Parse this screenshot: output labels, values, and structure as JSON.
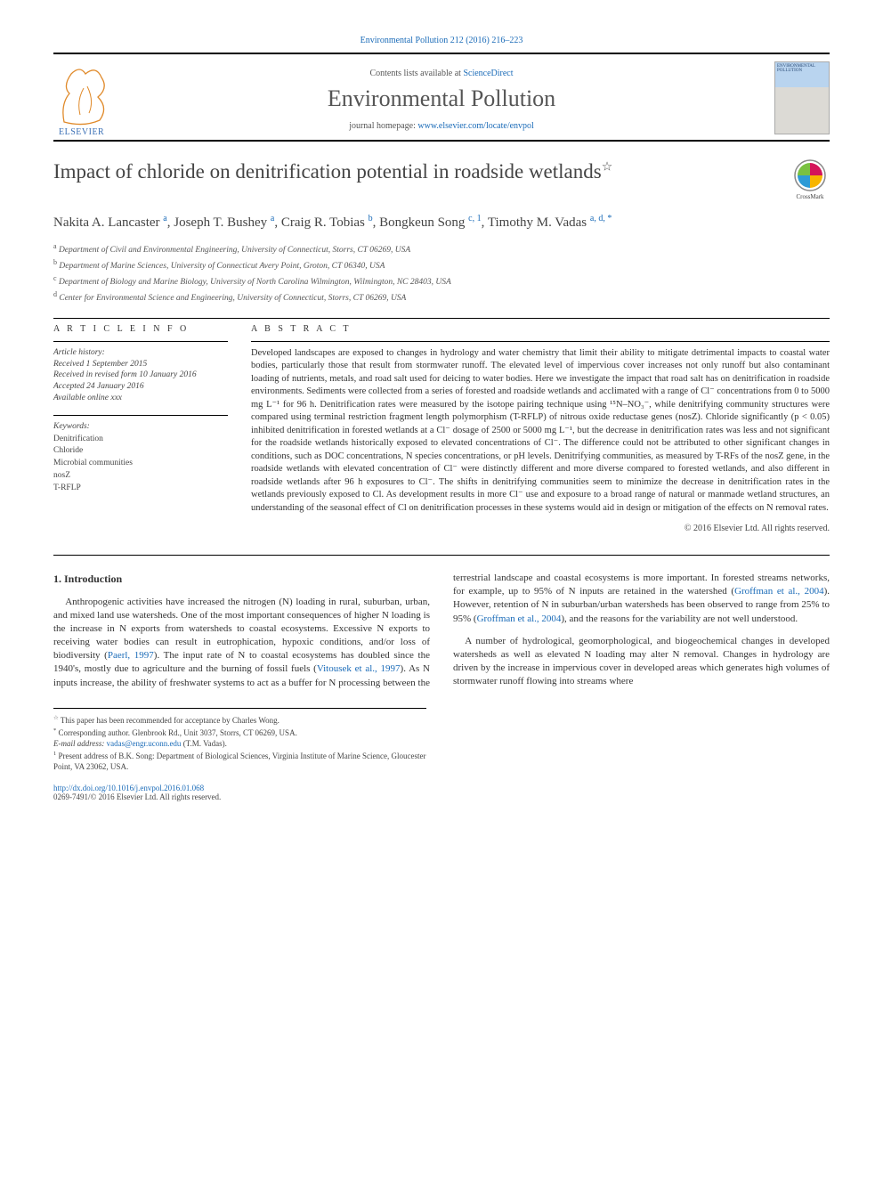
{
  "journal_ref": "Environmental Pollution 212 (2016) 216–223",
  "contents_line_pre": "Contents lists available at ",
  "contents_line_link": "ScienceDirect",
  "journal_name": "Environmental Pollution",
  "homepage_pre": "journal homepage: ",
  "homepage_link": "www.elsevier.com/locate/envpol",
  "publisher": "ELSEVIER",
  "cover_label": "ENVIRONMENTAL POLLUTION",
  "title": "Impact of chloride on denitrification potential in roadside wetlands",
  "title_star": "☆",
  "crossmark": "CrossMark",
  "authors_html": "Nakita A. Lancaster <sup>a</sup>, Joseph T. Bushey <sup>a</sup>, Craig R. Tobias <sup>b</sup>, Bongkeun Song <sup>c, 1</sup>, Timothy M. Vadas <sup>a, d, *</sup>",
  "affiliations": [
    {
      "sup": "a",
      "text": "Department of Civil and Environmental Engineering, University of Connecticut, Storrs, CT 06269, USA"
    },
    {
      "sup": "b",
      "text": "Department of Marine Sciences, University of Connecticut Avery Point, Groton, CT 06340, USA"
    },
    {
      "sup": "c",
      "text": "Department of Biology and Marine Biology, University of North Carolina Wilmington, Wilmington, NC 28403, USA"
    },
    {
      "sup": "d",
      "text": "Center for Environmental Science and Engineering, University of Connecticut, Storrs, CT 06269, USA"
    }
  ],
  "article_info_head": "A R T I C L E   I N F O",
  "abstract_head": "A B S T R A C T",
  "history": {
    "label": "Article history:",
    "received": "Received 1 September 2015",
    "revised": "Received in revised form 10 January 2016",
    "accepted": "Accepted 24 January 2016",
    "online": "Available online xxx"
  },
  "keywords_label": "Keywords:",
  "keywords": [
    "Denitrification",
    "Chloride",
    "Microbial communities",
    "nosZ",
    "T-RFLP"
  ],
  "abstract": "Developed landscapes are exposed to changes in hydrology and water chemistry that limit their ability to mitigate detrimental impacts to coastal water bodies, particularly those that result from stormwater runoff. The elevated level of impervious cover increases not only runoff but also contaminant loading of nutrients, metals, and road salt used for deicing to water bodies. Here we investigate the impact that road salt has on denitrification in roadside environments. Sediments were collected from a series of forested and roadside wetlands and acclimated with a range of Cl⁻ concentrations from 0 to 5000 mg L⁻¹ for 96 h. Denitrification rates were measured by the isotope pairing technique using ¹⁵N–NO₃⁻, while denitrifying community structures were compared using terminal restriction fragment length polymorphism (T-RFLP) of nitrous oxide reductase genes (nosZ). Chloride significantly (p < 0.05) inhibited denitrification in forested wetlands at a Cl⁻ dosage of 2500 or 5000 mg L⁻¹, but the decrease in denitrification rates was less and not significant for the roadside wetlands historically exposed to elevated concentrations of Cl⁻. The difference could not be attributed to other significant changes in conditions, such as DOC concentrations, N species concentrations, or pH levels. Denitrifying communities, as measured by T-RFs of the nosZ gene, in the roadside wetlands with elevated concentration of Cl⁻ were distinctly different and more diverse compared to forested wetlands, and also different in roadside wetlands after 96 h exposures to Cl⁻. The shifts in denitrifying communities seem to minimize the decrease in denitrification rates in the wetlands previously exposed to Cl. As development results in more Cl⁻ use and exposure to a broad range of natural or manmade wetland structures, an understanding of the seasonal effect of Cl on denitrification processes in these systems would aid in design or mitigation of the effects on N removal rates.",
  "abstract_copyright": "© 2016 Elsevier Ltd. All rights reserved.",
  "intro_head": "1. Introduction",
  "para1_a": "Anthropogenic activities have increased the nitrogen (N) loading in rural, suburban, urban, and mixed land use watersheds. One of the most important consequences of higher N loading is the increase in N exports from watersheds to coastal ecosystems. Excessive N exports to receiving water bodies can result in eutrophication, hypoxic conditions, and/or loss of biodiversity (",
  "para1_link1": "Paerl, 1997",
  "para1_b": "). The input rate of N to coastal ecosystems has doubled since the 1940's, mostly due to agriculture and the burning of fossil fuels (",
  "para1_link2": "Vitousek et al., 1997",
  "para1_c": "). As N inputs increase, the ability of freshwater systems to act as a buffer for N processing between the terrestrial landscape and coastal ecosystems is more important. In forested streams networks, for example, up to 95% of N inputs are retained in the watershed (",
  "para1_link3": "Groffman et al., 2004",
  "para1_d": "). However, retention of N in suburban/urban watersheds has been observed to range from 25% to 95% (",
  "para1_link4": "Groffman et al., 2004",
  "para1_e": "), and the reasons for the variability are not well understood.",
  "para2": "A number of hydrological, geomorphological, and biogeochemical changes in developed watersheds as well as elevated N loading may alter N removal. Changes in hydrology are driven by the increase in impervious cover in developed areas which generates high volumes of stormwater runoff flowing into streams where",
  "footnotes": {
    "star": "This paper has been recommended for acceptance by Charles Wong.",
    "corr": "Corresponding author. Glenbrook Rd., Unit 3037, Storrs, CT 06269, USA.",
    "email_label": "E-mail address: ",
    "email": "vadas@engr.uconn.edu",
    "email_who": " (T.M. Vadas).",
    "present": "Present address of B.K. Song: Department of Biological Sciences, Virginia Institute of Marine Science, Gloucester Point, VA 23062, USA."
  },
  "doi": "http://dx.doi.org/10.1016/j.envpol.2016.01.068",
  "issn_line": "0269-7491/© 2016 Elsevier Ltd. All rights reserved.",
  "colors": {
    "link": "#1a6bb8",
    "text": "#333333",
    "muted": "#555555",
    "rule": "#000000"
  }
}
